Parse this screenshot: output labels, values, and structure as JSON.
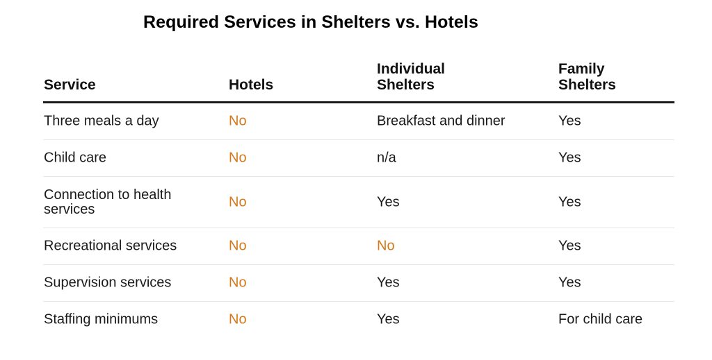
{
  "title": "Required Services in Shelters vs. Hotels",
  "colors": {
    "text": "#1a1a1a",
    "negative": "#d4781a",
    "header_rule": "#1a1a1a",
    "row_rule": "#e6e6e6"
  },
  "chart_data": {
    "type": "table",
    "title": "Required Services in Shelters vs. Hotels",
    "columns": [
      {
        "line1": "Service",
        "line2": ""
      },
      {
        "line1": "Hotels",
        "line2": ""
      },
      {
        "line1": "Individual",
        "line2": "Shelters"
      },
      {
        "line1": "Family",
        "line2": "Shelters"
      }
    ],
    "rows": [
      {
        "service": "Three meals a day",
        "hotels": "No",
        "individual": "Breakfast and dinner",
        "family": "Yes"
      },
      {
        "service": "Child care",
        "hotels": "No",
        "individual": "n/a",
        "family": "Yes"
      },
      {
        "service": "Connection to health services",
        "hotels": "No",
        "individual": "Yes",
        "family": "Yes"
      },
      {
        "service": "Recreational services",
        "hotels": "No",
        "individual": "No",
        "family": "Yes"
      },
      {
        "service": "Supervision services",
        "hotels": "No",
        "individual": "Yes",
        "family": "Yes"
      },
      {
        "service": "Staffing minimums",
        "hotels": "No",
        "individual": "Yes",
        "family": "For child care"
      }
    ]
  }
}
